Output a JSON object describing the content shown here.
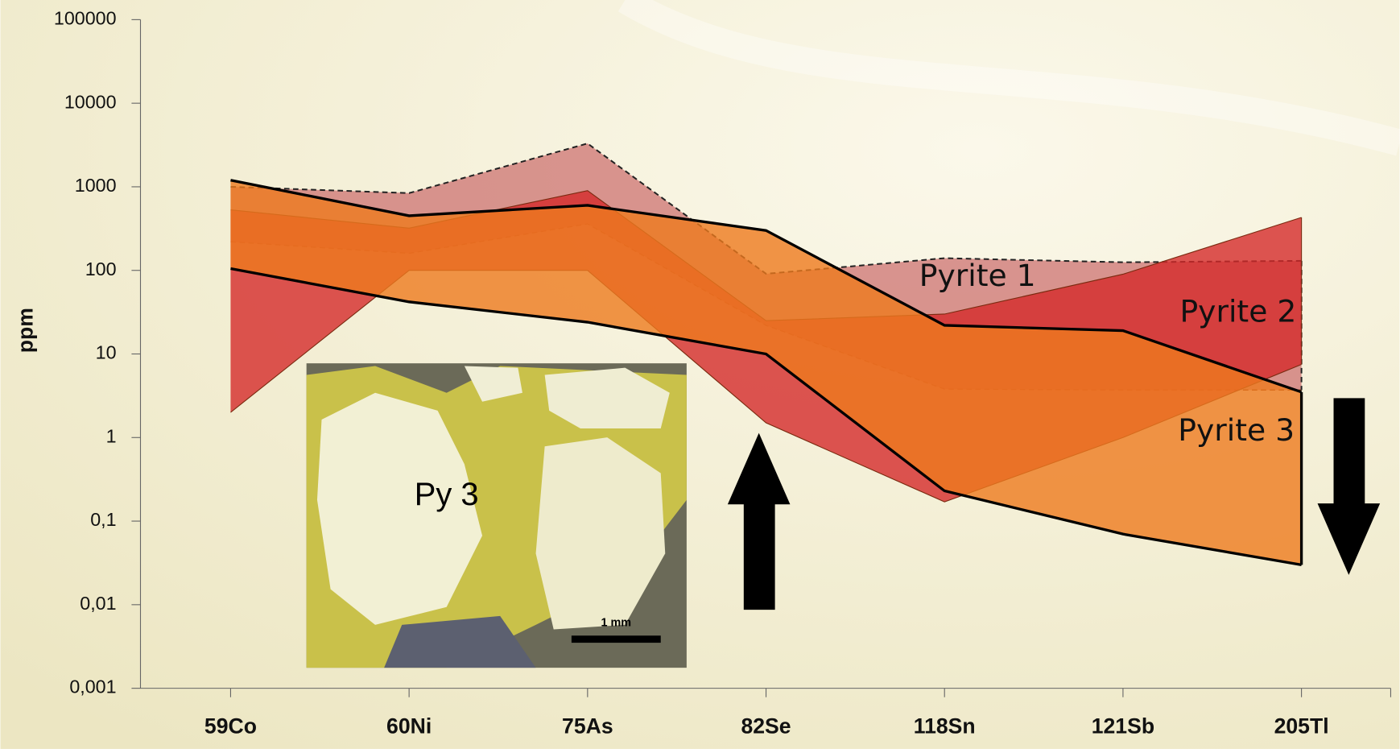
{
  "chart_data": {
    "type": "range-band",
    "y_label": "ppm",
    "log_scale": true,
    "categories": [
      "59Co",
      "60Ni",
      "75As",
      "82Se",
      "118Sn",
      "121Sb",
      "205Tl"
    ],
    "ylim": [
      0.001,
      100000
    ],
    "yticks": [
      {
        "value": 0.001,
        "label": "0,001"
      },
      {
        "value": 0.01,
        "label": "0,01"
      },
      {
        "value": 0.1,
        "label": "0,1"
      },
      1,
      10,
      100,
      1000,
      10000,
      100000
    ],
    "series": [
      {
        "name": "Pyrite 1",
        "color": "#cf7a78",
        "stroke": "#222222",
        "dashed": true,
        "upper": [
          1000,
          840,
          3300,
          91,
          140,
          125,
          130
        ],
        "lower": [
          220,
          160,
          360,
          22,
          3.8,
          3.7,
          3.7
        ]
      },
      {
        "name": "Pyrite 2",
        "color": "#d42a2a",
        "stroke": "#7a2a10",
        "dashed": false,
        "upper": [
          530,
          320,
          900,
          25,
          30,
          90,
          430
        ],
        "lower": [
          2,
          100,
          100,
          1.5,
          0.17,
          1,
          7.5
        ]
      },
      {
        "name": "Pyrite 3",
        "color": "#ee7a1e",
        "stroke": "#000000",
        "dashed": false,
        "upper": [
          1200,
          450,
          600,
          300,
          22,
          19,
          3.5
        ],
        "lower": [
          105,
          42,
          24,
          10,
          0.23,
          0.07,
          0.03
        ]
      }
    ],
    "annotations": [
      "Py 3",
      "1 mm"
    ]
  }
}
